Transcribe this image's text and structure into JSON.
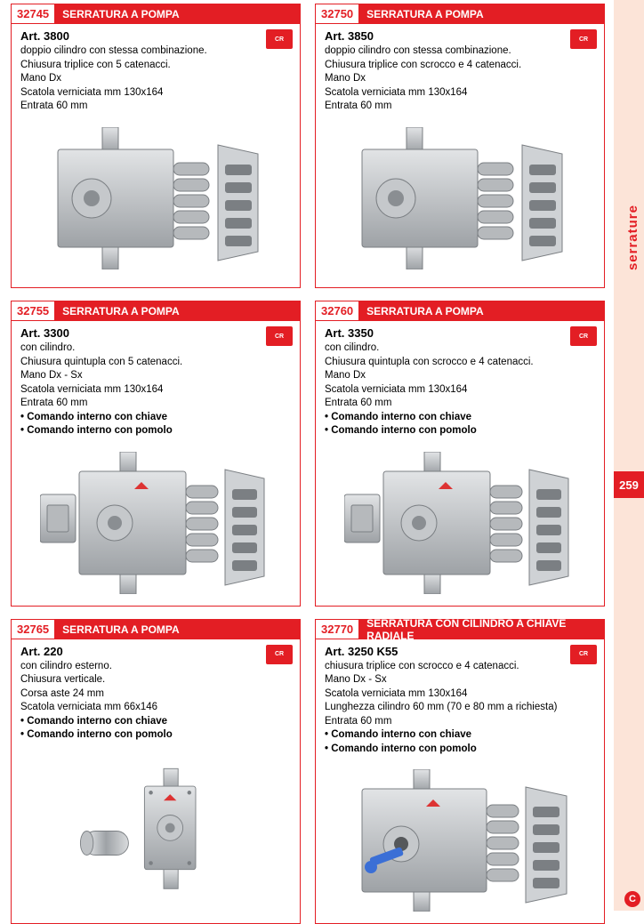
{
  "side": {
    "label": "serrature",
    "pageNum": "259"
  },
  "colors": {
    "accent": "#e31e24",
    "sideStrip": "#fce4d8",
    "text": "#222222",
    "metalLight": "#d4d6d8",
    "metalMid": "#a7aaae",
    "metalDark": "#808488"
  },
  "brandBadge": "CR",
  "products": [
    {
      "code": "32745",
      "title": "SERRATURA A POMPA",
      "art": "Art. 3800",
      "lines": [
        "doppio cilindro con stessa combinazione.",
        "Chiusura triplice con 5 catenacci.",
        "Mano Dx",
        "Scatola verniciata mm 130x164",
        "Entrata 60 mm"
      ],
      "bullets": [],
      "imageType": "lock-a"
    },
    {
      "code": "32750",
      "title": "SERRATURA A POMPA",
      "art": "Art. 3850",
      "lines": [
        "doppio cilindro con stessa combinazione.",
        "Chiusura triplice con scrocco e 4 catenacci.",
        "Mano Dx",
        "Scatola verniciata mm 130x164",
        "Entrata 60 mm"
      ],
      "bullets": [],
      "imageType": "lock-a"
    },
    {
      "code": "32755",
      "title": "SERRATURA A POMPA",
      "art": "Art. 3300",
      "lines": [
        "con cilindro.",
        "Chiusura quintupla con 5 catenacci.",
        "Mano Dx - Sx",
        "Scatola verniciata mm 130x164",
        "Entrata 60 mm"
      ],
      "bullets": [
        "• Comando interno con chiave",
        "• Comando interno con pomolo"
      ],
      "imageType": "lock-b"
    },
    {
      "code": "32760",
      "title": "SERRATURA A POMPA",
      "art": "Art. 3350",
      "lines": [
        "con cilindro.",
        "Chiusura quintupla con scrocco e 4 catenacci.",
        "Mano Dx",
        "Scatola verniciata mm 130x164",
        "Entrata 60 mm"
      ],
      "bullets": [
        "• Comando interno con chiave",
        "• Comando interno con pomolo"
      ],
      "imageType": "lock-b"
    },
    {
      "code": "32765",
      "title": "SERRATURA A POMPA",
      "art": "Art. 220",
      "lines": [
        "con cilindro esterno.",
        "Chiusura verticale.",
        "Corsa aste 24 mm",
        "Scatola verniciata mm 66x146"
      ],
      "bullets": [
        "• Comando interno con chiave",
        "• Comando interno con pomolo"
      ],
      "imageType": "lock-c"
    },
    {
      "code": "32770",
      "title": "SERRATURA CON CILINDRO A CHIAVE RADIALE",
      "art": "Art. 3250 K55",
      "lines": [
        "chiusura triplice con scrocco e 4 catenacci.",
        "Mano  Dx - Sx",
        "Scatola verniciata mm 130x164",
        "Lunghezza cilindro 60 mm (70 e 80 mm a richiesta)",
        "Entrata 60 mm"
      ],
      "bullets": [
        "• Comando interno con chiave",
        "• Comando interno con pomolo"
      ],
      "imageType": "lock-d"
    }
  ]
}
